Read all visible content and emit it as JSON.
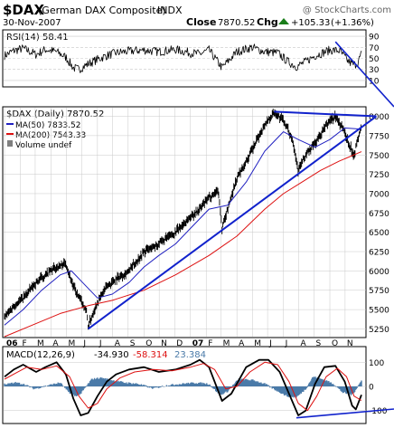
{
  "header": {
    "symbol": "$DAX",
    "name": "(German DAX Composite)",
    "exchange": "INDX",
    "date": "30-Nov-2007",
    "watermark": "@ StockCharts.com",
    "close_label": "Close",
    "close_value": "7870.52",
    "chg_label": "Chg",
    "chg_value": "+105.33",
    "chg_pct": "(+1.36%)",
    "chg_arrow": "arrow-up"
  },
  "colors": {
    "price": "#000000",
    "ma50": "#2020c0",
    "ma200": "#dd1111",
    "trendline": "#1122cc",
    "macd_hist": "#4a7aa8",
    "volume_bar": "#7f7f7f",
    "grid": "#c8c8c8"
  },
  "chart_data": [
    {
      "type": "line",
      "panel": "rsi",
      "legend": "RSI(14) 58.41",
      "yticks": [
        10,
        30,
        50,
        70,
        90
      ],
      "ylim": [
        0,
        100
      ],
      "reference_lines": [
        30,
        50,
        70
      ],
      "series": [
        {
          "name": "RSI(14)",
          "values": [
            [
              2006.0,
              55
            ],
            [
              2006.05,
              64
            ],
            [
              2006.1,
              68
            ],
            [
              2006.17,
              57
            ],
            [
              2006.22,
              66
            ],
            [
              2006.28,
              62
            ],
            [
              2006.33,
              52
            ],
            [
              2006.37,
              33
            ],
            [
              2006.4,
              30
            ],
            [
              2006.45,
              40
            ],
            [
              2006.5,
              48
            ],
            [
              2006.55,
              55
            ],
            [
              2006.6,
              60
            ],
            [
              2006.67,
              63
            ],
            [
              2006.75,
              65
            ],
            [
              2006.83,
              62
            ],
            [
              2006.92,
              66
            ],
            [
              2007.0,
              60
            ],
            [
              2007.05,
              58
            ],
            [
              2007.1,
              65
            ],
            [
              2007.17,
              33
            ],
            [
              2007.25,
              62
            ],
            [
              2007.33,
              70
            ],
            [
              2007.4,
              62
            ],
            [
              2007.47,
              60
            ],
            [
              2007.52,
              45
            ],
            [
              2007.57,
              35
            ],
            [
              2007.62,
              44
            ],
            [
              2007.67,
              55
            ],
            [
              2007.75,
              65
            ],
            [
              2007.8,
              64
            ],
            [
              2007.85,
              44
            ],
            [
              2007.88,
              38
            ],
            [
              2007.9,
              42
            ],
            [
              2007.92,
              58
            ]
          ]
        }
      ],
      "annotations": [
        {
          "kind": "trendline",
          "points": [
            [
              2007.78,
              80
            ],
            [
              2008.0,
              -5
            ]
          ]
        }
      ]
    },
    {
      "type": "line",
      "panel": "price",
      "title": "$DAX (Daily) 7870.52",
      "legend_entries": [
        {
          "label": "MA(50) 7833.52",
          "color_key": "ma50"
        },
        {
          "label": "MA(200) 7543.33",
          "color_key": "ma200"
        },
        {
          "label": "Volume undef",
          "color_key": "volume_bar"
        }
      ],
      "ylim": [
        5150,
        8100
      ],
      "yticks": [
        5250,
        5500,
        5750,
        6000,
        6250,
        6500,
        6750,
        7000,
        7250,
        7500,
        7750,
        8000
      ],
      "xlabels": [
        {
          "t": 2006.0,
          "label": "06"
        },
        {
          "t": 2006.085,
          "label": "F"
        },
        {
          "t": 2006.165,
          "label": "M"
        },
        {
          "t": 2006.25,
          "label": "A"
        },
        {
          "t": 2006.333,
          "label": "M"
        },
        {
          "t": 2006.415,
          "label": "J"
        },
        {
          "t": 2006.5,
          "label": "J"
        },
        {
          "t": 2006.582,
          "label": "A"
        },
        {
          "t": 2006.665,
          "label": "S"
        },
        {
          "t": 2006.75,
          "label": "O"
        },
        {
          "t": 2006.832,
          "label": "N"
        },
        {
          "t": 2006.915,
          "label": "D"
        },
        {
          "t": 2007.0,
          "label": "07"
        },
        {
          "t": 2007.085,
          "label": "F"
        },
        {
          "t": 2007.165,
          "label": "M"
        },
        {
          "t": 2007.25,
          "label": "A"
        },
        {
          "t": 2007.333,
          "label": "M"
        },
        {
          "t": 2007.415,
          "label": "J"
        },
        {
          "t": 2007.5,
          "label": "J"
        },
        {
          "t": 2007.582,
          "label": "A"
        },
        {
          "t": 2007.665,
          "label": "S"
        },
        {
          "t": 2007.75,
          "label": "O"
        },
        {
          "t": 2007.832,
          "label": "N"
        }
      ],
      "series": [
        {
          "name": "$DAX",
          "values": [
            [
              2006.0,
              5400
            ],
            [
              2006.05,
              5550
            ],
            [
              2006.1,
              5650
            ],
            [
              2006.17,
              5850
            ],
            [
              2006.22,
              5950
            ],
            [
              2006.28,
              6050
            ],
            [
              2006.33,
              6100
            ],
            [
              2006.37,
              5800
            ],
            [
              2006.4,
              5650
            ],
            [
              2006.44,
              5500
            ],
            [
              2006.45,
              5290
            ],
            [
              2006.5,
              5600
            ],
            [
              2006.55,
              5800
            ],
            [
              2006.6,
              5900
            ],
            [
              2006.67,
              6000
            ],
            [
              2006.75,
              6250
            ],
            [
              2006.83,
              6350
            ],
            [
              2006.92,
              6500
            ],
            [
              2007.0,
              6700
            ],
            [
              2007.05,
              6800
            ],
            [
              2007.1,
              6950
            ],
            [
              2007.15,
              7050
            ],
            [
              2007.17,
              6550
            ],
            [
              2007.2,
              6800
            ],
            [
              2007.25,
              7200
            ],
            [
              2007.33,
              7550
            ],
            [
              2007.4,
              7900
            ],
            [
              2007.45,
              8050
            ],
            [
              2007.5,
              7950
            ],
            [
              2007.55,
              7700
            ],
            [
              2007.58,
              7300
            ],
            [
              2007.62,
              7500
            ],
            [
              2007.67,
              7650
            ],
            [
              2007.75,
              7950
            ],
            [
              2007.78,
              8000
            ],
            [
              2007.82,
              7850
            ],
            [
              2007.86,
              7600
            ],
            [
              2007.88,
              7500
            ],
            [
              2007.9,
              7700
            ],
            [
              2007.92,
              7870
            ]
          ]
        },
        {
          "name": "MA(50)",
          "values": [
            [
              2006.0,
              5300
            ],
            [
              2006.1,
              5500
            ],
            [
              2006.2,
              5750
            ],
            [
              2006.3,
              5950
            ],
            [
              2006.36,
              6000
            ],
            [
              2006.42,
              5850
            ],
            [
              2006.5,
              5650
            ],
            [
              2006.58,
              5700
            ],
            [
              2006.67,
              5850
            ],
            [
              2006.75,
              6050
            ],
            [
              2006.83,
              6200
            ],
            [
              2006.92,
              6350
            ],
            [
              2007.0,
              6550
            ],
            [
              2007.1,
              6800
            ],
            [
              2007.2,
              6850
            ],
            [
              2007.3,
              7150
            ],
            [
              2007.4,
              7550
            ],
            [
              2007.5,
              7800
            ],
            [
              2007.58,
              7700
            ],
            [
              2007.67,
              7600
            ],
            [
              2007.75,
              7700
            ],
            [
              2007.83,
              7850
            ],
            [
              2007.92,
              7833
            ]
          ]
        },
        {
          "name": "MA(200)",
          "values": [
            [
              2006.0,
              5150
            ],
            [
              2006.15,
              5300
            ],
            [
              2006.3,
              5450
            ],
            [
              2006.45,
              5550
            ],
            [
              2006.58,
              5620
            ],
            [
              2006.75,
              5750
            ],
            [
              2006.92,
              5950
            ],
            [
              2007.1,
              6200
            ],
            [
              2007.25,
              6450
            ],
            [
              2007.4,
              6800
            ],
            [
              2007.5,
              7000
            ],
            [
              2007.6,
              7150
            ],
            [
              2007.7,
              7300
            ],
            [
              2007.8,
              7420
            ],
            [
              2007.92,
              7543
            ]
          ]
        }
      ],
      "annotations": [
        {
          "kind": "trendline",
          "points": [
            [
              2006.45,
              5250
            ],
            [
              2008.0,
              8000
            ]
          ]
        },
        {
          "kind": "trendline",
          "points": [
            [
              2007.45,
              8060
            ],
            [
              2008.0,
              8000
            ]
          ]
        }
      ]
    },
    {
      "type": "line",
      "panel": "macd",
      "legend": {
        "label": "MACD(12,26,9)",
        "macd": "-34.930",
        "signal": "-58.314",
        "hist": "23.384"
      },
      "ylim": [
        -150,
        150
      ],
      "yticks": [
        -100,
        0,
        100
      ],
      "series": [
        {
          "name": "MACD",
          "values": [
            [
              2006.0,
              40
            ],
            [
              2006.05,
              70
            ],
            [
              2006.1,
              90
            ],
            [
              2006.17,
              60
            ],
            [
              2006.22,
              80
            ],
            [
              2006.28,
              100
            ],
            [
              2006.33,
              50
            ],
            [
              2006.37,
              -50
            ],
            [
              2006.41,
              -120
            ],
            [
              2006.45,
              -110
            ],
            [
              2006.5,
              -40
            ],
            [
              2006.55,
              20
            ],
            [
              2006.6,
              50
            ],
            [
              2006.67,
              70
            ],
            [
              2006.75,
              80
            ],
            [
              2006.83,
              60
            ],
            [
              2006.92,
              70
            ],
            [
              2007.0,
              90
            ],
            [
              2007.05,
              110
            ],
            [
              2007.1,
              80
            ],
            [
              2007.17,
              -60
            ],
            [
              2007.22,
              -30
            ],
            [
              2007.3,
              80
            ],
            [
              2007.37,
              110
            ],
            [
              2007.42,
              110
            ],
            [
              2007.48,
              60
            ],
            [
              2007.53,
              -30
            ],
            [
              2007.58,
              -120
            ],
            [
              2007.62,
              -100
            ],
            [
              2007.67,
              10
            ],
            [
              2007.72,
              80
            ],
            [
              2007.78,
              85
            ],
            [
              2007.83,
              20
            ],
            [
              2007.87,
              -80
            ],
            [
              2007.89,
              -95
            ],
            [
              2007.92,
              -35
            ]
          ]
        },
        {
          "name": "Signal",
          "values": [
            [
              2006.0,
              30
            ],
            [
              2006.06,
              55
            ],
            [
              2006.12,
              80
            ],
            [
              2006.2,
              70
            ],
            [
              2006.28,
              85
            ],
            [
              2006.35,
              40
            ],
            [
              2006.4,
              -40
            ],
            [
              2006.45,
              -90
            ],
            [
              2006.5,
              -70
            ],
            [
              2006.55,
              -10
            ],
            [
              2006.62,
              35
            ],
            [
              2006.7,
              60
            ],
            [
              2006.8,
              70
            ],
            [
              2006.9,
              65
            ],
            [
              2007.0,
              80
            ],
            [
              2007.07,
              95
            ],
            [
              2007.13,
              70
            ],
            [
              2007.19,
              -10
            ],
            [
              2007.25,
              0
            ],
            [
              2007.32,
              60
            ],
            [
              2007.4,
              100
            ],
            [
              2007.47,
              90
            ],
            [
              2007.53,
              20
            ],
            [
              2007.58,
              -70
            ],
            [
              2007.63,
              -100
            ],
            [
              2007.68,
              -40
            ],
            [
              2007.73,
              40
            ],
            [
              2007.79,
              75
            ],
            [
              2007.84,
              40
            ],
            [
              2007.88,
              -40
            ],
            [
              2007.92,
              -58
            ]
          ]
        }
      ],
      "histogram": [
        [
          2006.02,
          10
        ],
        [
          2006.06,
          15
        ],
        [
          2006.1,
          10
        ],
        [
          2006.16,
          -10
        ],
        [
          2006.24,
          5
        ],
        [
          2006.3,
          15
        ],
        [
          2006.34,
          -20
        ],
        [
          2006.38,
          -40
        ],
        [
          2006.41,
          -30
        ],
        [
          2006.47,
          30
        ],
        [
          2006.52,
          35
        ],
        [
          2006.58,
          25
        ],
        [
          2006.65,
          15
        ],
        [
          2006.72,
          10
        ],
        [
          2006.8,
          -8
        ],
        [
          2006.88,
          5
        ],
        [
          2006.95,
          10
        ],
        [
          2007.03,
          15
        ],
        [
          2007.1,
          10
        ],
        [
          2007.16,
          -35
        ],
        [
          2007.2,
          -20
        ],
        [
          2007.26,
          30
        ],
        [
          2007.34,
          25
        ],
        [
          2007.4,
          10
        ],
        [
          2007.46,
          -15
        ],
        [
          2007.52,
          -40
        ],
        [
          2007.57,
          -45
        ],
        [
          2007.62,
          -10
        ],
        [
          2007.66,
          40
        ],
        [
          2007.71,
          30
        ],
        [
          2007.77,
          10
        ],
        [
          2007.82,
          -25
        ],
        [
          2007.87,
          -35
        ],
        [
          2007.92,
          23
        ]
      ],
      "annotations": [
        {
          "kind": "trendline",
          "points": [
            [
              2007.57,
              -130
            ],
            [
              2008.0,
              -80
            ]
          ]
        }
      ]
    }
  ]
}
